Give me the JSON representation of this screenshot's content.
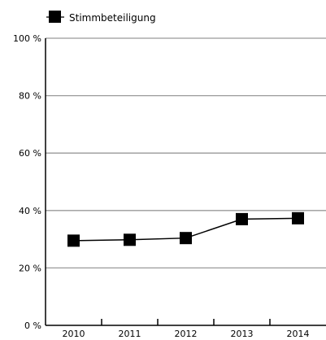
{
  "chart_data": {
    "type": "line",
    "categories": [
      "2010",
      "2011",
      "2012",
      "2013",
      "2014"
    ],
    "series": [
      {
        "name": "Stimmbeteiligung",
        "values": [
          29.5,
          29.8,
          30.4,
          37.0,
          37.3
        ],
        "color": "#000000"
      }
    ],
    "ylim": [
      0,
      100
    ],
    "yticks": [
      0,
      20,
      40,
      60,
      80,
      100
    ],
    "ytick_labels": [
      "0 %",
      "20 %",
      "40 %",
      "60 %",
      "80 %",
      "100 %"
    ],
    "grid": true,
    "legend": "top-left",
    "marker": "square"
  }
}
